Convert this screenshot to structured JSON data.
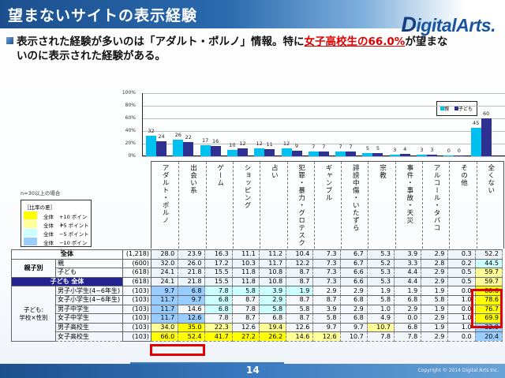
{
  "header": {
    "title": "望まないサイトの表示経験",
    "logo": "igitalArts",
    "logo_initial": "D",
    "logo_suffix": "."
  },
  "summary": {
    "text_before": "表示された経験が多いのは「アダルト・ポルノ」情報。特に",
    "highlight": "女子高校生の66.0%",
    "text_after": "が望まな",
    "line2": "いのに表示された経験がある。"
  },
  "chart_data": {
    "type": "bar",
    "title": "",
    "xlabel": "",
    "ylabel": "",
    "ylim": [
      0,
      100
    ],
    "yticks": [
      "100%",
      "80%",
      "60%",
      "40%",
      "20%",
      "0%"
    ],
    "grid": true,
    "legend_position": "upper right",
    "categories": [
      "アダルト・ポルノ",
      "出会い系",
      "ゲーム",
      "ショッピング",
      "占い",
      "犯罪・暴力・グロテスク",
      "ギャンブル",
      "誹謗中傷・いたずら",
      "宗教",
      "事件・事故・天災",
      "アルコール・タバコ",
      "その他",
      "全くない"
    ],
    "series": [
      {
        "name": "親",
        "color": "#00c0f0",
        "values": [
          32,
          26,
          17,
          10,
          12,
          12,
          7,
          7,
          5,
          3,
          3,
          0,
          45
        ]
      },
      {
        "name": "子ども",
        "color": "#2e3192",
        "values": [
          24,
          22,
          16,
          12,
          11,
          9,
          7,
          7,
          5,
          4,
          3,
          0,
          60
        ]
      }
    ]
  },
  "legend": {
    "parent": "親",
    "child": "子ども"
  },
  "note": "n=30以上の場合",
  "diff_legend": {
    "title": "［比率の差］",
    "rows": [
      {
        "label": "全体",
        "value": "+10 ポイント",
        "color": "#ffff00"
      },
      {
        "label": "全体",
        "value": "+5 ポイント",
        "color": "#ffff99"
      },
      {
        "label": "全体",
        "value": "−5 ポイント",
        "color": "#ccffff"
      },
      {
        "label": "全体",
        "value": "−10 ポイント",
        "color": "#99ccff"
      }
    ]
  },
  "table": {
    "columns": [
      "アダルト・ポルノ",
      "出会い系",
      "ゲーム",
      "ショッピング",
      "占い",
      "犯罪・暴力・グロテスク",
      "ギャンブル",
      "誹謗中傷・いたずら",
      "宗教",
      "事件・事故・天災",
      "アルコール・タバコ",
      "その他",
      "全くない"
    ],
    "rows": [
      {
        "group": "全体",
        "label": "",
        "n": "(1,218)",
        "values": [
          "28.0",
          "23.9",
          "16.3",
          "11.1",
          "11.2",
          "10.4",
          "7.3",
          "6.7",
          "5.3",
          "3.9",
          "2.9",
          "0.3",
          "52.2"
        ]
      },
      {
        "group": "親子別",
        "label": "親",
        "n": "(600)",
        "values": [
          "32.0",
          "26.0",
          "17.2",
          "10.3",
          "11.7",
          "12.2",
          "7.3",
          "6.7",
          "5.2",
          "3.3",
          "2.8",
          "0.2",
          "44.5"
        ]
      },
      {
        "group": "",
        "label": "子ども",
        "n": "(618)",
        "values": [
          "24.1",
          "21.8",
          "15.5",
          "11.8",
          "10.8",
          "8.7",
          "7.3",
          "6.6",
          "5.3",
          "4.4",
          "2.9",
          "0.5",
          "59.7"
        ]
      },
      {
        "group": "子ども 全体",
        "label": "",
        "n": "(618)",
        "values": [
          "24.1",
          "21.8",
          "15.5",
          "11.8",
          "10.8",
          "8.7",
          "7.3",
          "6.6",
          "5.3",
          "4.4",
          "2.9",
          "0.5",
          "59.7"
        ]
      },
      {
        "group": "子ども:学校×性別",
        "label": "男子小学生(4~6年生)",
        "n": "(103)",
        "values": [
          "9.7",
          "6.8",
          "7.8",
          "5.8",
          "3.9",
          "1.9",
          "2.9",
          "2.9",
          "1.9",
          "1.9",
          "1.9",
          "0.0",
          "80.6"
        ]
      },
      {
        "group": "",
        "label": "女子小学生(4~6年生)",
        "n": "(103)",
        "values": [
          "11.7",
          "9.7",
          "6.8",
          "8.7",
          "2.9",
          "8.7",
          "8.7",
          "6.8",
          "5.8",
          "6.8",
          "5.8",
          "1.0",
          "78.6"
        ]
      },
      {
        "group": "",
        "label": "男子中学生",
        "n": "(103)",
        "values": [
          "11.7",
          "14.6",
          "6.8",
          "7.8",
          "5.8",
          "5.8",
          "3.9",
          "2.9",
          "1.0",
          "2.9",
          "1.9",
          "0.0",
          "76.7"
        ]
      },
      {
        "group": "",
        "label": "女子中学生",
        "n": "(103)",
        "values": [
          "11.7",
          "12.6",
          "7.8",
          "8.7",
          "6.8",
          "8.7",
          "5.8",
          "6.8",
          "4.9",
          "0.0",
          "2.9",
          "1.0",
          "69.9"
        ]
      },
      {
        "group": "",
        "label": "男子高校生",
        "n": "(103)",
        "values": [
          "34.0",
          "35.0",
          "22.3",
          "12.6",
          "19.4",
          "12.6",
          "9.7",
          "9.7",
          "10.7",
          "6.8",
          "1.9",
          "1.0",
          "32.0"
        ]
      },
      {
        "group": "",
        "label": "女子高校生",
        "n": "(103)",
        "values": [
          "66.0",
          "52.4",
          "41.7",
          "27.2",
          "26.2",
          "14.6",
          "12.6",
          "10.7",
          "7.8",
          "7.8",
          "2.9",
          "0.0",
          "20.4"
        ]
      }
    ],
    "group_labels": {
      "parent_child": "親子別",
      "child_all": "子ども 全体",
      "school_sex_1": "子ども:",
      "school_sex_2": "学校×性別",
      "total": "全体"
    }
  },
  "footer": {
    "page": "14",
    "copyright": "Copyright © 2014 Digital Arts Inc."
  }
}
